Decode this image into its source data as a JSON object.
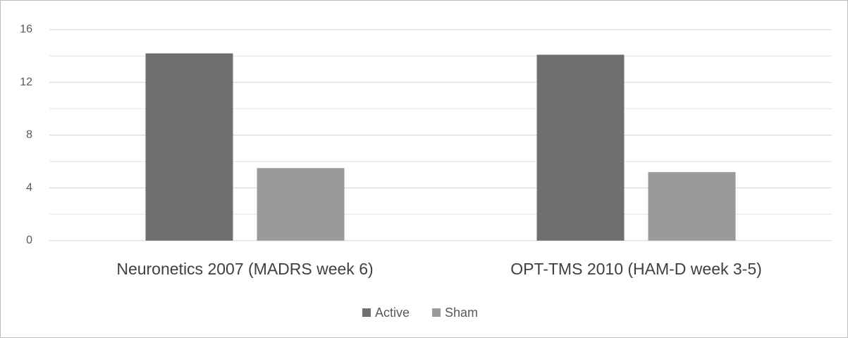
{
  "chart_data": {
    "type": "bar",
    "categories": [
      "Neuronetics 2007 (MADRS week 6)",
      "OPT-TMS 2010 (HAM-D week 3-5)"
    ],
    "series": [
      {
        "name": "Active",
        "color": "#6f6f6f",
        "values": [
          14.2,
          14.1
        ]
      },
      {
        "name": "Sham",
        "color": "#9a9a9a",
        "values": [
          5.5,
          5.2
        ]
      }
    ],
    "ylim": [
      0,
      16
    ],
    "yticks": [
      0,
      4,
      8,
      12,
      16
    ],
    "minor_yticks": [
      2,
      6,
      10,
      14
    ],
    "grid": true,
    "legend": "bottom"
  }
}
